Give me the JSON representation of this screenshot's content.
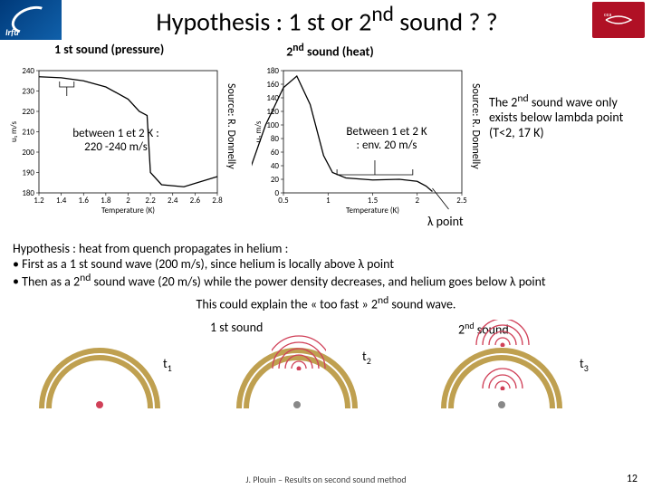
{
  "title_html": "Hypothesis : 1 st or 2<sup>nd</sup> sound ? ?",
  "left_label": "1 st sound (pressure)",
  "right_label_html": "2<sup>nd</sup> sound (heat)",
  "source_label": "Source: R. Donnelly",
  "chart1": {
    "ylabel": "u₁ m/s",
    "xlabel": "Temperature (K)",
    "x": [
      1.2,
      1.4,
      1.6,
      1.8,
      2.0,
      2.2,
      2.4,
      2.6,
      2.8
    ],
    "y_ticks": [
      180,
      190,
      200,
      210,
      220,
      230,
      240
    ],
    "line_color": "#000000",
    "data": [
      [
        1.2,
        237
      ],
      [
        1.4,
        236.5
      ],
      [
        1.6,
        235
      ],
      [
        1.8,
        232
      ],
      [
        2.0,
        226
      ],
      [
        2.1,
        220
      ],
      [
        2.17,
        218
      ],
      [
        2.2,
        190
      ],
      [
        2.3,
        184
      ],
      [
        2.5,
        183
      ],
      [
        2.8,
        188
      ]
    ],
    "marker_x": 1.45,
    "marker_label": "between 1 et 2 K :\n220 -240 m/s",
    "bg": "#ffffff",
    "grid": "#e8e8e8",
    "font_size": 9
  },
  "chart2": {
    "ylabel": "u₂ m/s",
    "xlabel": "Temperature (K)",
    "x": [
      0.5,
      1.0,
      1.5,
      2.0,
      2.5
    ],
    "y_ticks": [
      0,
      20,
      40,
      60,
      80,
      100,
      120,
      140,
      160,
      180
    ],
    "line_color": "#000000",
    "data": [
      [
        0.02,
        6
      ],
      [
        0.1,
        25
      ],
      [
        0.3,
        100
      ],
      [
        0.5,
        155
      ],
      [
        0.65,
        172
      ],
      [
        0.8,
        130
      ],
      [
        0.95,
        55
      ],
      [
        1.05,
        30
      ],
      [
        1.2,
        22
      ],
      [
        1.5,
        19
      ],
      [
        1.8,
        20
      ],
      [
        2.0,
        17
      ],
      [
        2.1,
        10
      ],
      [
        2.17,
        2
      ]
    ],
    "marker_range": [
      1.1,
      1.95
    ],
    "marker_label": "Between 1 et 2 K\n: env. 20 m/s",
    "bg": "#ffffff",
    "font_size": 9,
    "lambda_x": 2.17
  },
  "lambda_label": "λ point",
  "side_text_html": "The 2<sup>nd</sup> sound wave only exists below lambda point (T<2, 17 K)",
  "hypothesis": {
    "intro": "Hypothesis : heat from quench propagates in helium :",
    "b1_html": "First as a 1 st sound wave (200 m/s), since helium is locally above λ point",
    "b2_html": "Then as a 2<sup>nd</sup> sound wave (20 m/s) while the power density decreases, and helium goes below λ point"
  },
  "explain_html": "This could explain the « too fast » 2<sup>nd</sup> sound wave.",
  "wave": {
    "label1": "1 st sound",
    "label2_html": "2<sup>nd</sup> sound",
    "t1": "t<sub>1</sub>",
    "t2": "t<sub>2</sub>",
    "t3": "t<sub>3</sub>",
    "arc_color": "#bfa050",
    "anim_color": "#d04058"
  },
  "footer": "J. Plouin – Results on second sound method",
  "page": "12"
}
